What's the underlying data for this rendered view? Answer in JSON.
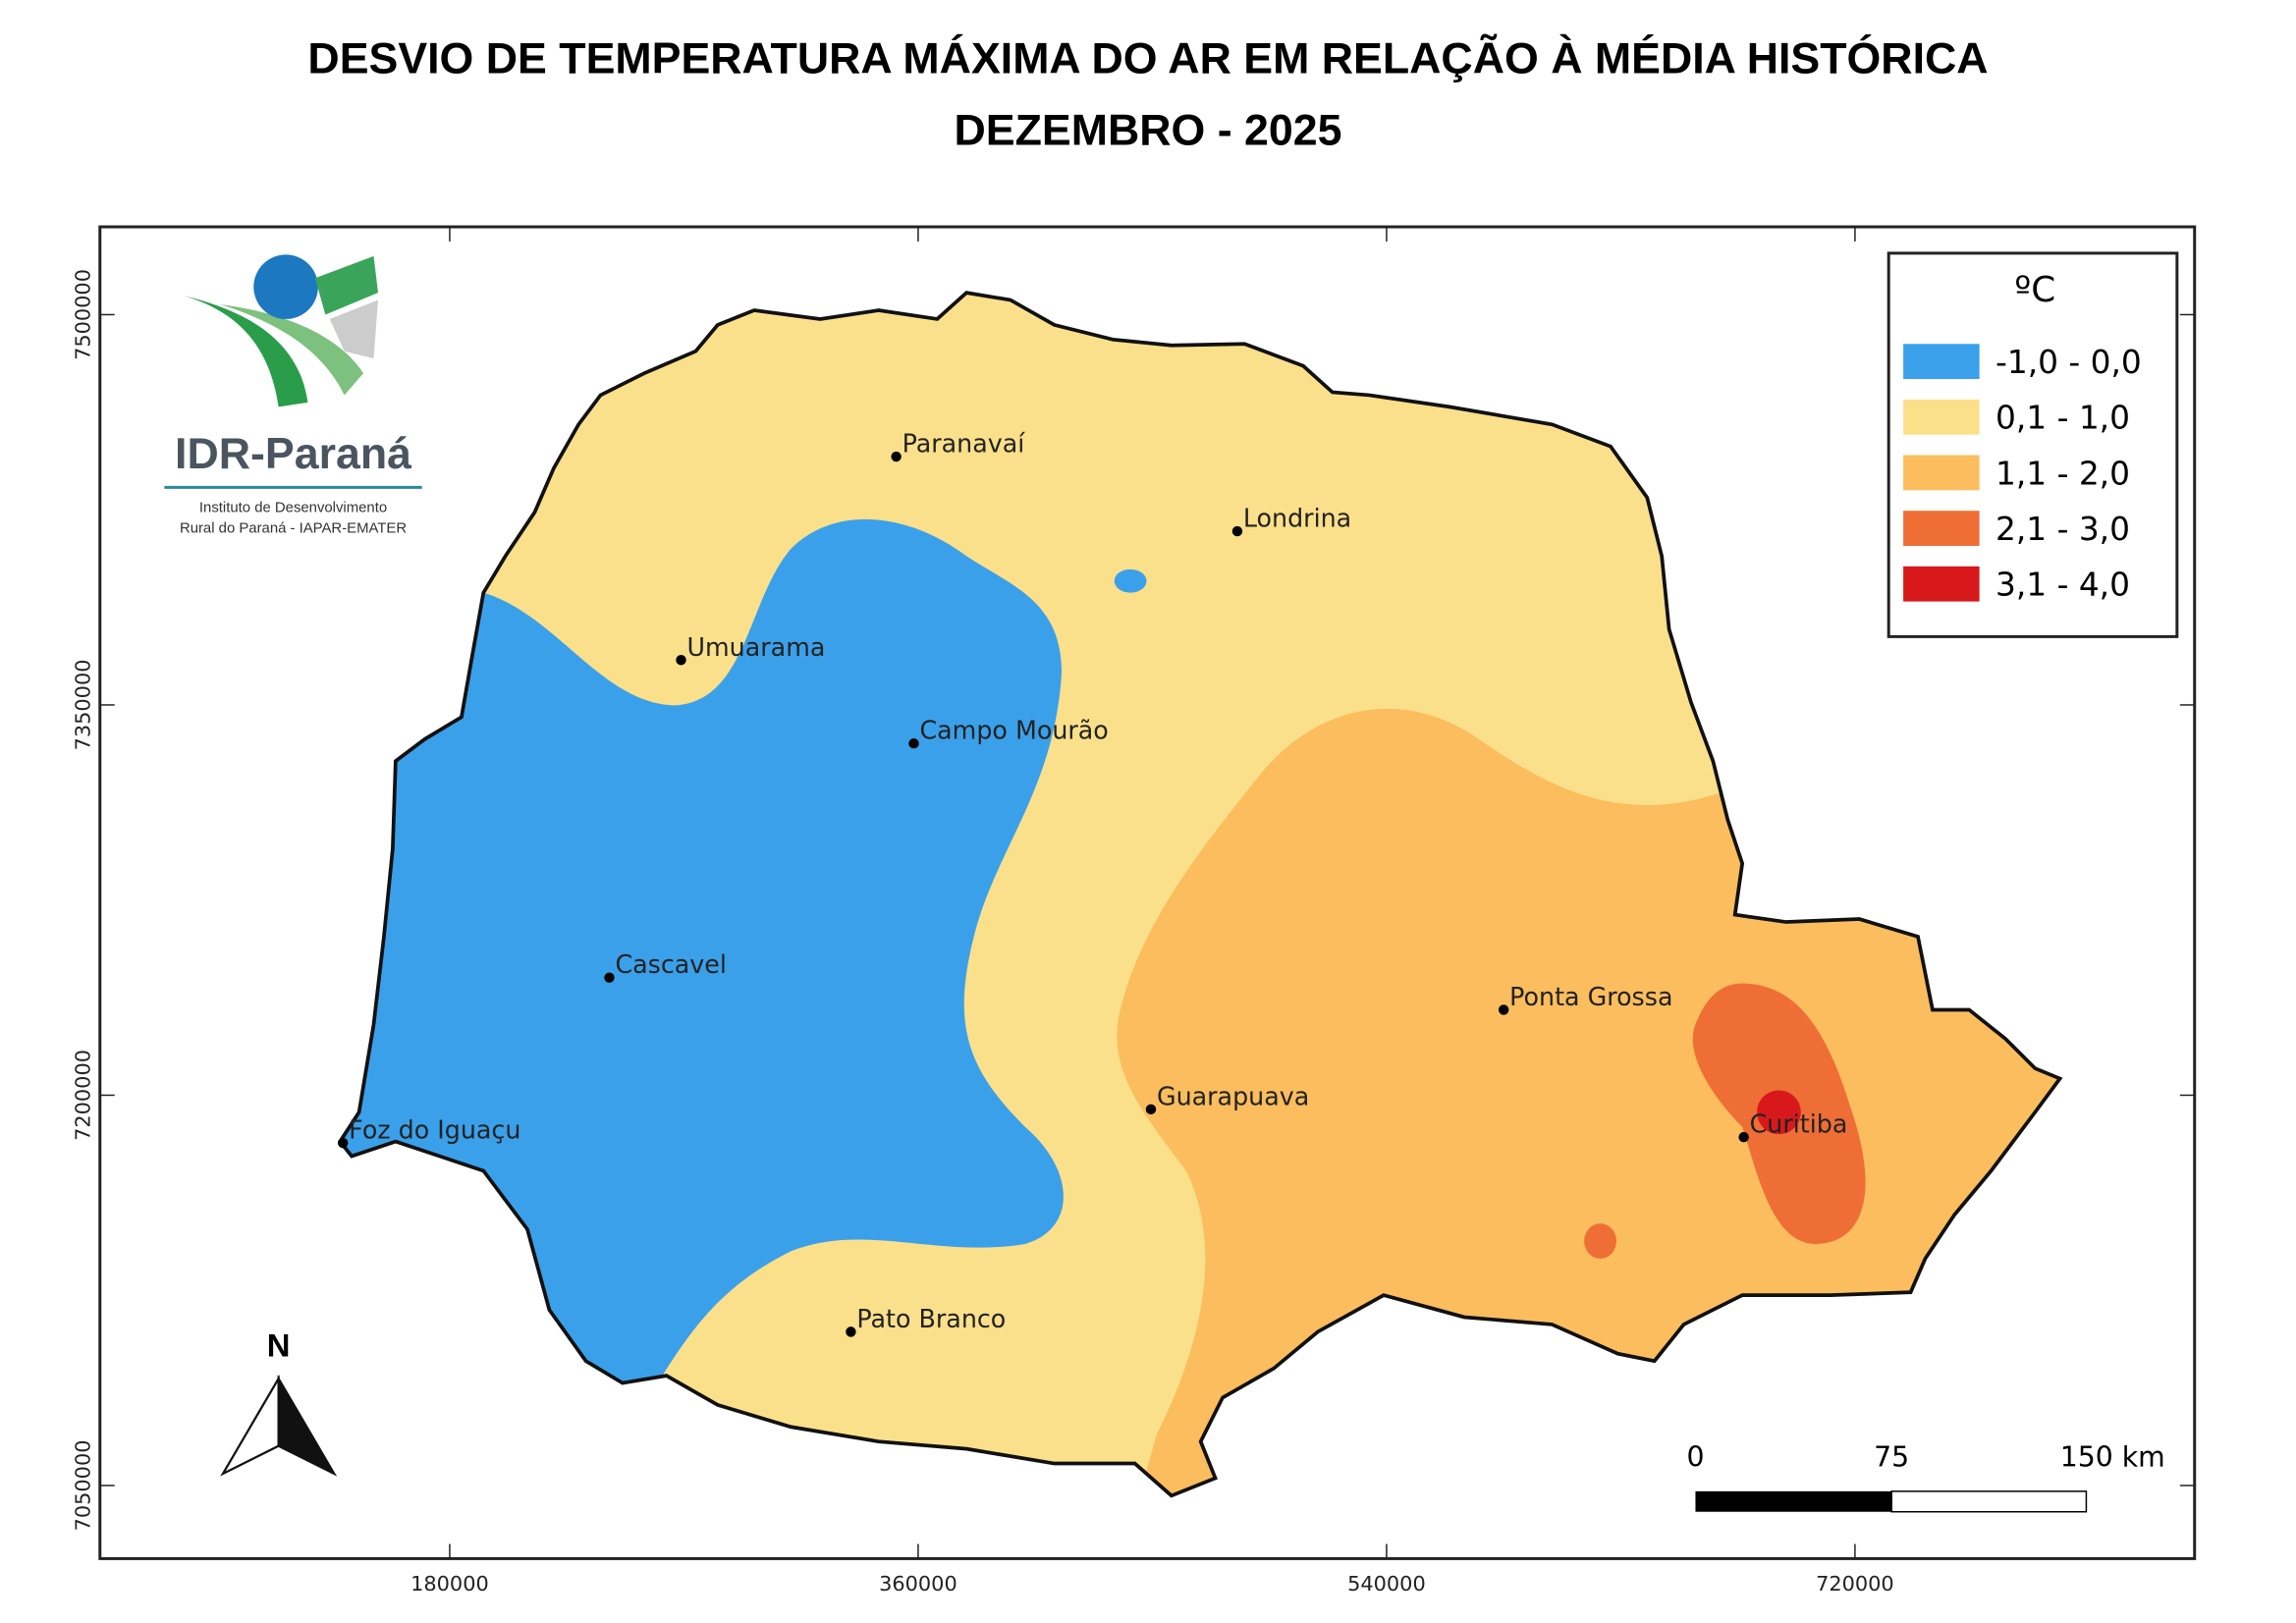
{
  "title": "DESVIO DE TEMPERATURA MÁXIMA DO AR EM RELAÇÃO À MÉDIA HISTÓRICA",
  "subtitle": "DEZEMBRO - 2025",
  "logo": {
    "name": "IDR-Paraná",
    "line1": "Instituto de Desenvolvimento",
    "line2": "Rural do Paraná - IAPAR-EMATER"
  },
  "map": {
    "xlim": [
      45600,
      850500
    ],
    "ylim": [
      7021900,
      7533750
    ],
    "xticks": [
      180000,
      360000,
      540000,
      720000
    ],
    "yticks": [
      7050000,
      7200000,
      7350000,
      7500000
    ]
  },
  "legend": {
    "title": "ºC",
    "items": [
      {
        "label": "-1,0 - 0,0",
        "color": "#3ba0ea"
      },
      {
        "label": "0,1 - 1,0",
        "color": "#fbe08b"
      },
      {
        "label": "1,1 - 2,0",
        "color": "#fbbd5d"
      },
      {
        "label": "2,1 - 3,0",
        "color": "#ee6e36"
      },
      {
        "label": "3,1 - 4,0",
        "color": "#d7191c"
      }
    ]
  },
  "cities": [
    "Paranavaí",
    "Londrina",
    "Umuarama",
    "Campo Mourão",
    "Cascavel",
    "Ponta Grossa",
    "Guarapuava",
    "Foz do Iguaçu",
    "Curitiba",
    "Pato Branco"
  ],
  "north": "N",
  "scale_bar": [
    "0",
    "75",
    "150 km"
  ]
}
